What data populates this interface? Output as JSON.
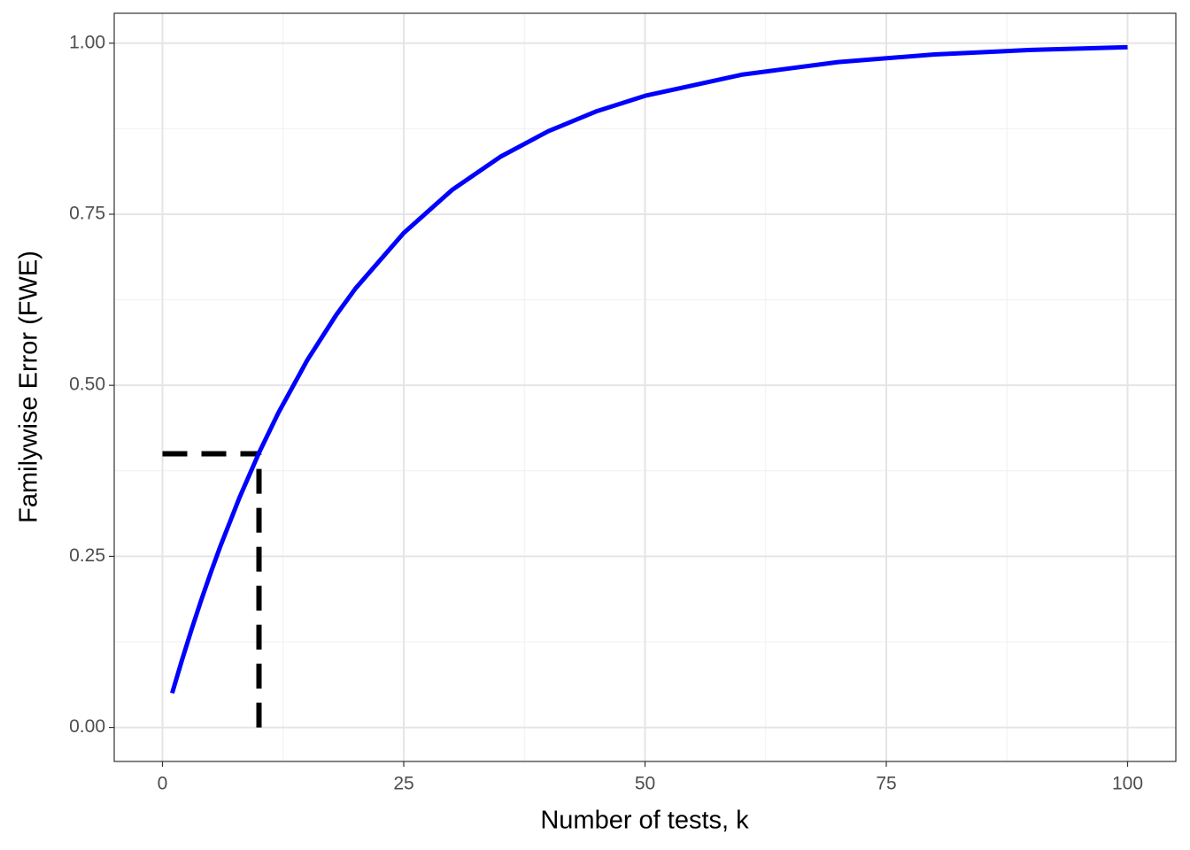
{
  "chart_data": {
    "type": "line",
    "x_label": "Number of tests, k",
    "y_label": "Familywise Error (FWE)",
    "x": [
      1,
      2,
      3,
      4,
      5,
      6,
      8,
      10,
      12,
      15,
      18,
      20,
      25,
      30,
      35,
      40,
      45,
      50,
      60,
      70,
      80,
      90,
      100
    ],
    "series": [
      {
        "color": "#0000ff",
        "values": [
          0.05,
          0.0975,
          0.1426,
          0.1855,
          0.2262,
          0.2649,
          0.3366,
          0.4013,
          0.4596,
          0.5367,
          0.6028,
          0.6415,
          0.7226,
          0.7854,
          0.8339,
          0.8715,
          0.9006,
          0.9231,
          0.9539,
          0.9724,
          0.9835,
          0.9901,
          0.9941
        ]
      }
    ],
    "guides": [
      {
        "x": [
          0,
          10
        ],
        "y": [
          0.4,
          0.4
        ],
        "color": "#000000"
      },
      {
        "x": [
          10,
          10
        ],
        "y": [
          0,
          0.4
        ],
        "color": "#000000"
      }
    ],
    "xlim": [
      -5,
      105
    ],
    "ylim": [
      -0.0497,
      1.0437
    ],
    "xticks": [
      0,
      25,
      50,
      75,
      100
    ],
    "yticks": [
      {
        "value": 0,
        "label": "0.00"
      },
      {
        "value": 0.25,
        "label": "0.25"
      },
      {
        "value": 0.5,
        "label": "0.50"
      },
      {
        "value": 0.75,
        "label": "0.75"
      },
      {
        "value": 1,
        "label": "1.00"
      }
    ],
    "minor_xticks": [
      12.5,
      37.5,
      62.5,
      87.5
    ],
    "minor_yticks": [
      0.125,
      0.375,
      0.625,
      0.875
    ],
    "grid": true
  }
}
